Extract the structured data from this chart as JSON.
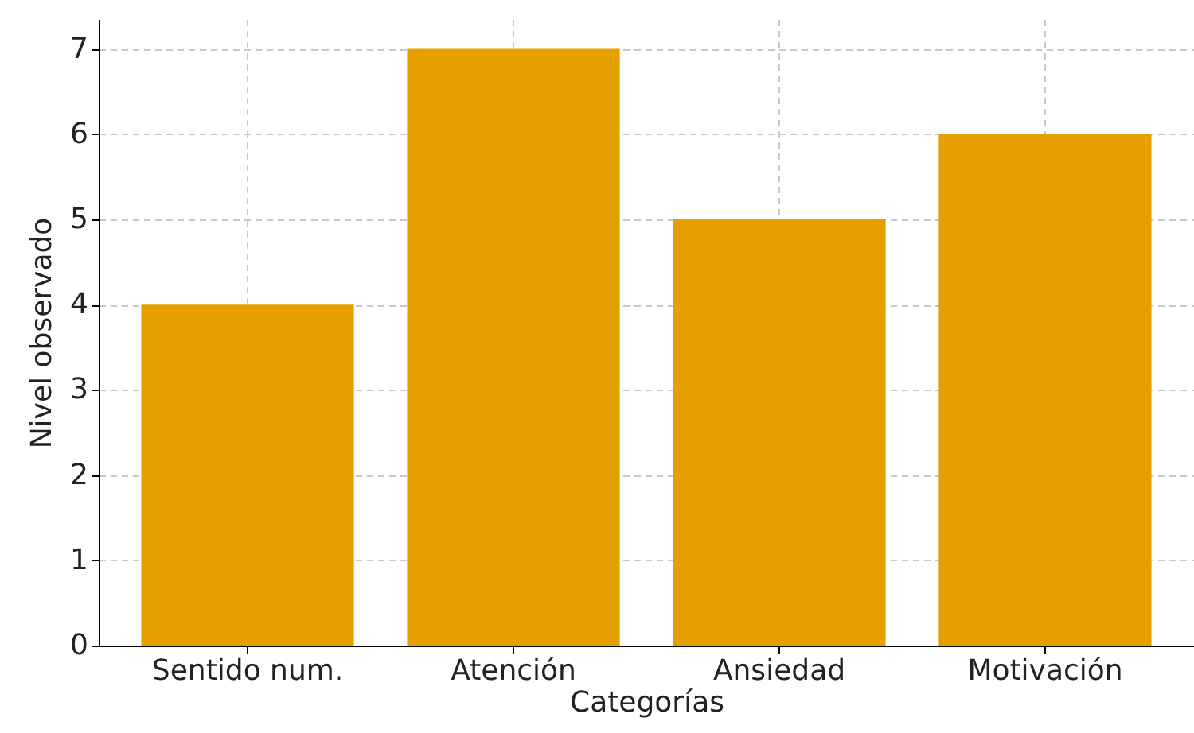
{
  "chart_data": {
    "type": "bar",
    "xlabel": "Categorías",
    "ylabel": "Nivel observado",
    "categories": [
      "Sentido num.",
      "Atención",
      "Ansiedad",
      "Motivación"
    ],
    "values": [
      4,
      7,
      5,
      6
    ],
    "color": "#e5a000",
    "ylim": [
      0,
      7.35
    ],
    "yticks": [
      0,
      1,
      2,
      3,
      4,
      5,
      6,
      7
    ],
    "grid": true
  }
}
